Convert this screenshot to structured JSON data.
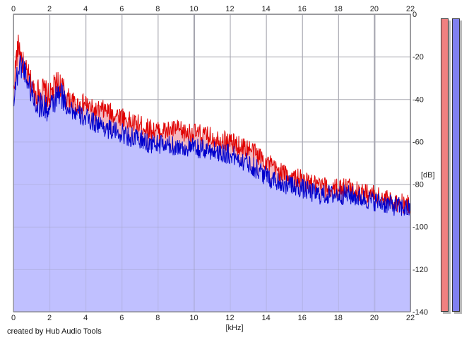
{
  "chart_data": {
    "type": "area",
    "xlabel": "[kHz]",
    "ylabel": "[dB]",
    "xlim": [
      0,
      22
    ],
    "ylim": [
      -140,
      0
    ],
    "x_ticks": [
      0,
      2,
      4,
      6,
      8,
      10,
      12,
      14,
      16,
      18,
      20,
      22
    ],
    "y_ticks": [
      0,
      -20,
      -40,
      -60,
      -80,
      -100,
      -120,
      -140
    ],
    "grid": true,
    "series": [
      {
        "color": "#e00000",
        "fill": "#f3b8c0",
        "x": [
          0,
          0.15,
          0.3,
          0.5,
          0.8,
          1.2,
          1.6,
          2.0,
          2.4,
          2.6,
          3.0,
          3.5,
          4.0,
          4.5,
          5.0,
          5.5,
          6.0,
          6.5,
          7.0,
          7.5,
          8.0,
          8.5,
          9.0,
          9.5,
          10.0,
          10.5,
          11.0,
          11.5,
          12.0,
          12.5,
          13.0,
          13.5,
          14.0,
          14.5,
          15.0,
          15.5,
          16.0,
          16.5,
          17.0,
          17.5,
          18.0,
          18.5,
          19.0,
          19.5,
          20.0,
          20.5,
          21.0,
          21.5,
          22.0
        ],
        "values": [
          -35,
          -20,
          -13,
          -22,
          -28,
          -36,
          -34,
          -38,
          -31,
          -32,
          -38,
          -42,
          -41,
          -45,
          -44,
          -46,
          -47,
          -50,
          -51,
          -53,
          -54,
          -54,
          -53,
          -55,
          -55,
          -56,
          -57,
          -58,
          -59,
          -61,
          -62,
          -65,
          -68,
          -72,
          -74,
          -76,
          -77,
          -79,
          -80,
          -81,
          -81,
          -80,
          -82,
          -83,
          -84,
          -86,
          -87,
          -88,
          -89
        ]
      },
      {
        "color": "#0000cc",
        "fill": "#c0c0ff",
        "x": [
          0,
          0.15,
          0.3,
          0.5,
          0.8,
          1.2,
          1.6,
          2.0,
          2.4,
          2.6,
          3.0,
          3.5,
          4.0,
          4.5,
          5.0,
          5.5,
          6.0,
          6.5,
          7.0,
          7.5,
          8.0,
          8.5,
          9.0,
          9.5,
          10.0,
          10.5,
          11.0,
          11.5,
          12.0,
          12.5,
          13.0,
          13.5,
          14.0,
          14.5,
          15.0,
          15.5,
          16.0,
          16.5,
          17.0,
          17.5,
          18.0,
          18.5,
          19.0,
          19.5,
          20.0,
          20.5,
          21.0,
          21.5,
          22.0
        ],
        "values": [
          -38,
          -30,
          -24,
          -22,
          -30,
          -40,
          -42,
          -44,
          -38,
          -36,
          -42,
          -46,
          -48,
          -50,
          -52,
          -54,
          -55,
          -57,
          -58,
          -60,
          -60,
          -61,
          -61,
          -62,
          -62,
          -63,
          -63,
          -64,
          -65,
          -67,
          -69,
          -72,
          -75,
          -77,
          -79,
          -80,
          -81,
          -83,
          -84,
          -84,
          -84,
          -84,
          -85,
          -86,
          -87,
          -88,
          -89,
          -90,
          -91
        ]
      }
    ]
  },
  "meters": [
    {
      "color": "#f08080"
    },
    {
      "color": "#8080f0"
    }
  ],
  "credit": "created by Hub Audio Tools"
}
